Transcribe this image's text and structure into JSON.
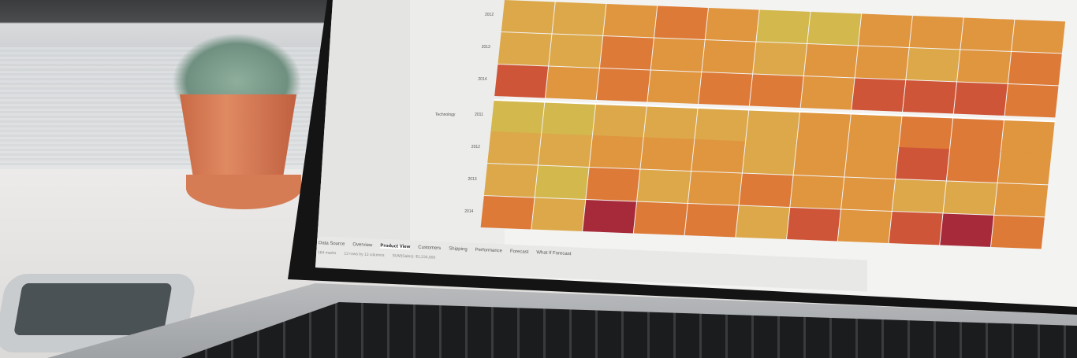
{
  "palette": [
    "#d3b84e",
    "#dca84a",
    "#e0953f",
    "#dd7a38",
    "#cf5538",
    "#a72a3a"
  ],
  "heatmap": {
    "row_labels": [
      {
        "category": "",
        "year": "2012"
      },
      {
        "category": "",
        "year": "2013"
      },
      {
        "category": "",
        "year": "2014"
      },
      {
        "category": "Technology",
        "year": "2011"
      },
      {
        "category": "",
        "year": "2012"
      },
      {
        "category": "",
        "year": "2013"
      },
      {
        "category": "",
        "year": "2014"
      }
    ],
    "levels": [
      [
        1,
        1,
        2,
        3,
        2,
        0,
        0,
        2,
        2,
        2,
        2
      ],
      [
        1,
        1,
        3,
        2,
        2,
        1,
        2,
        2,
        1,
        2,
        3
      ],
      [
        4,
        2,
        3,
        2,
        3,
        3,
        2,
        4,
        4,
        4,
        3
      ],
      [
        0,
        0,
        1,
        1,
        1,
        1,
        2,
        2,
        3,
        3,
        2
      ],
      [
        1,
        1,
        2,
        2,
        2,
        1,
        2,
        2,
        4,
        3,
        2
      ],
      [
        1,
        0,
        3,
        1,
        2,
        3,
        2,
        2,
        1,
        1,
        2
      ],
      [
        3,
        1,
        5,
        3,
        3,
        1,
        4,
        2,
        4,
        5,
        3
      ]
    ]
  },
  "tabs": [
    "Data Source",
    "Overview",
    "Product View",
    "Customers",
    "Shipping",
    "Performance",
    "Forecast",
    "What If Forecast"
  ],
  "active_tab": "Product View",
  "status": [
    "184 marks",
    "13 rows by 13 columns",
    "SUM(Sales): $1,234,000"
  ]
}
